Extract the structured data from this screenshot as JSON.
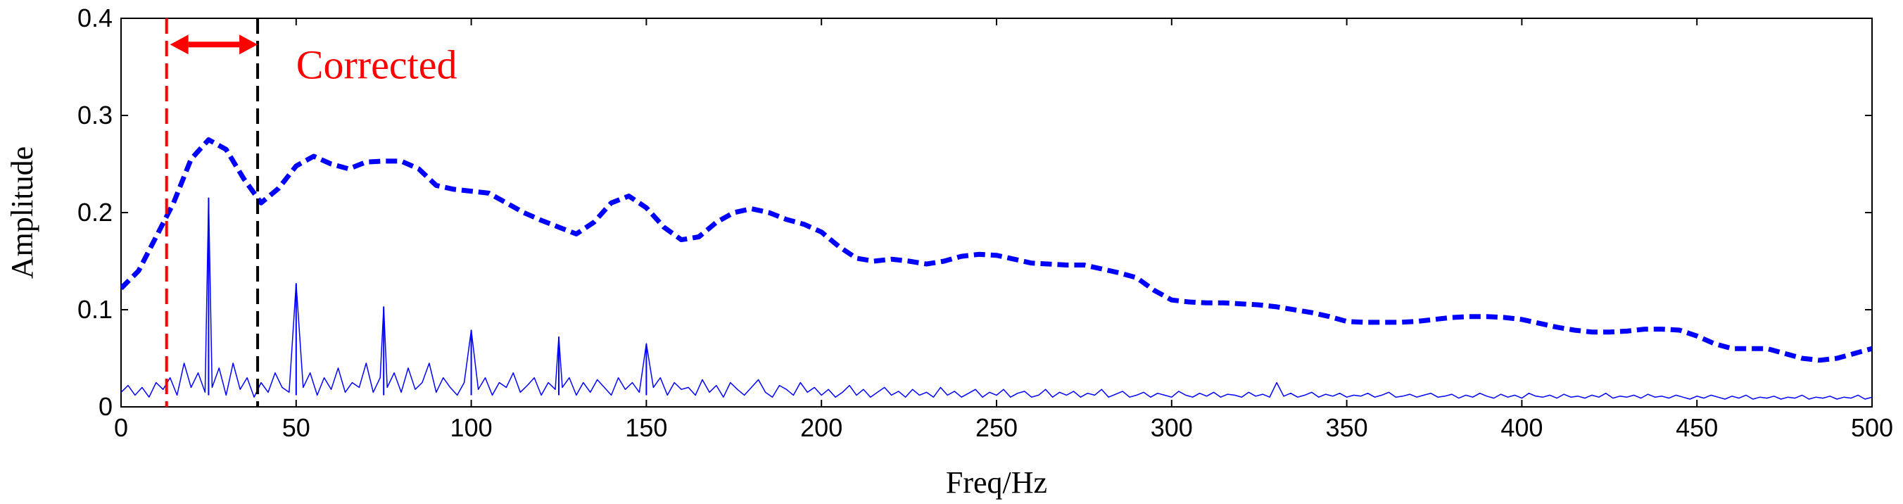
{
  "chart_data": {
    "type": "line",
    "title": "",
    "xlabel": "Freq/Hz",
    "ylabel": "Amplitude",
    "xlim": [
      0,
      500
    ],
    "ylim": [
      0,
      0.4
    ],
    "xticks": [
      0,
      50,
      100,
      150,
      200,
      250,
      300,
      350,
      400,
      450,
      500
    ],
    "yticks": [
      0,
      0.1,
      0.2,
      0.3,
      0.4
    ],
    "ytick_labels": [
      "0",
      "0.1",
      "0.2",
      "0.3",
      "0.4"
    ],
    "grid": false,
    "annotations": [
      {
        "type": "vline",
        "x": 13,
        "color": "#ff0000",
        "style": "dashed"
      },
      {
        "type": "vline",
        "x": 39,
        "color": "#000000",
        "style": "dashed"
      },
      {
        "type": "double-arrow",
        "x_from": 14,
        "x_to": 39,
        "y": 0.373,
        "color": "#ff0000"
      },
      {
        "type": "text",
        "text": "Corrected",
        "x": 50,
        "y": 0.338,
        "color": "#ff0000"
      }
    ],
    "series": [
      {
        "style": "dashed",
        "color": "#0000ff",
        "x": [
          0,
          5,
          10,
          15,
          20,
          25,
          30,
          35,
          40,
          45,
          50,
          55,
          60,
          65,
          70,
          75,
          80,
          85,
          90,
          95,
          100,
          105,
          110,
          115,
          120,
          125,
          130,
          135,
          140,
          145,
          150,
          155,
          160,
          165,
          170,
          175,
          180,
          185,
          190,
          195,
          200,
          205,
          210,
          215,
          220,
          225,
          230,
          235,
          240,
          245,
          250,
          255,
          260,
          265,
          270,
          275,
          280,
          285,
          290,
          295,
          300,
          305,
          310,
          315,
          320,
          325,
          330,
          335,
          340,
          345,
          350,
          355,
          360,
          365,
          370,
          375,
          380,
          385,
          390,
          395,
          400,
          405,
          410,
          415,
          420,
          425,
          430,
          435,
          440,
          445,
          450,
          455,
          460,
          465,
          470,
          475,
          480,
          485,
          490,
          495,
          500
        ],
        "y": [
          0.122,
          0.14,
          0.175,
          0.21,
          0.255,
          0.275,
          0.265,
          0.235,
          0.21,
          0.225,
          0.248,
          0.258,
          0.25,
          0.245,
          0.252,
          0.253,
          0.253,
          0.245,
          0.228,
          0.224,
          0.222,
          0.22,
          0.21,
          0.2,
          0.192,
          0.185,
          0.178,
          0.19,
          0.21,
          0.217,
          0.205,
          0.185,
          0.172,
          0.175,
          0.19,
          0.2,
          0.204,
          0.2,
          0.193,
          0.188,
          0.18,
          0.165,
          0.153,
          0.15,
          0.152,
          0.15,
          0.147,
          0.15,
          0.155,
          0.157,
          0.156,
          0.152,
          0.148,
          0.147,
          0.146,
          0.146,
          0.142,
          0.138,
          0.133,
          0.12,
          0.11,
          0.108,
          0.107,
          0.107,
          0.106,
          0.105,
          0.103,
          0.1,
          0.097,
          0.093,
          0.088,
          0.087,
          0.087,
          0.087,
          0.088,
          0.09,
          0.092,
          0.093,
          0.093,
          0.092,
          0.09,
          0.086,
          0.082,
          0.079,
          0.077,
          0.077,
          0.078,
          0.08,
          0.08,
          0.079,
          0.073,
          0.065,
          0.06,
          0.06,
          0.06,
          0.055,
          0.05,
          0.048,
          0.05,
          0.055,
          0.06
        ]
      },
      {
        "style": "solid",
        "color": "#0000ff",
        "peaks": [
          {
            "x": 25,
            "y": 0.215
          },
          {
            "x": 50,
            "y": 0.127
          },
          {
            "x": 75,
            "y": 0.103
          },
          {
            "x": 100,
            "y": 0.079
          },
          {
            "x": 125,
            "y": 0.072
          },
          {
            "x": 150,
            "y": 0.065
          }
        ],
        "x": [
          0,
          2,
          4,
          6,
          8,
          10,
          12,
          14,
          16,
          18,
          20,
          22,
          24,
          25,
          26,
          28,
          30,
          32,
          34,
          36,
          38,
          40,
          42,
          44,
          46,
          48,
          50,
          52,
          54,
          56,
          58,
          60,
          62,
          64,
          66,
          68,
          70,
          72,
          74,
          75,
          76,
          78,
          80,
          82,
          84,
          86,
          88,
          90,
          92,
          94,
          96,
          98,
          100,
          102,
          104,
          106,
          108,
          110,
          112,
          114,
          116,
          118,
          120,
          122,
          124,
          125,
          126,
          128,
          130,
          132,
          134,
          136,
          138,
          140,
          142,
          144,
          146,
          148,
          150,
          152,
          154,
          156,
          158,
          160,
          162,
          164,
          166,
          168,
          170,
          172,
          174,
          176,
          178,
          180,
          182,
          184,
          186,
          188,
          190,
          192,
          194,
          196,
          198,
          200,
          202,
          204,
          206,
          208,
          210,
          212,
          214,
          216,
          218,
          220,
          222,
          224,
          226,
          228,
          230,
          232,
          234,
          236,
          238,
          240,
          242,
          244,
          246,
          248,
          250,
          252,
          254,
          256,
          258,
          260,
          262,
          264,
          266,
          268,
          270,
          272,
          274,
          276,
          278,
          280,
          282,
          284,
          286,
          288,
          290,
          292,
          294,
          296,
          298,
          300,
          302,
          304,
          306,
          308,
          310,
          312,
          314,
          316,
          318,
          320,
          322,
          324,
          326,
          328,
          330,
          332,
          334,
          336,
          338,
          340,
          342,
          344,
          346,
          348,
          350,
          352,
          354,
          356,
          358,
          360,
          362,
          364,
          366,
          368,
          370,
          372,
          374,
          376,
          378,
          380,
          382,
          384,
          386,
          388,
          390,
          392,
          394,
          396,
          398,
          400,
          402,
          404,
          406,
          408,
          410,
          412,
          414,
          416,
          418,
          420,
          422,
          424,
          426,
          428,
          430,
          432,
          434,
          436,
          438,
          440,
          442,
          444,
          446,
          448,
          450,
          452,
          454,
          456,
          458,
          460,
          462,
          464,
          466,
          468,
          470,
          472,
          474,
          476,
          478,
          480,
          482,
          484,
          486,
          488,
          490,
          492,
          494,
          496,
          498,
          500
        ],
        "y": [
          0.015,
          0.022,
          0.012,
          0.02,
          0.01,
          0.025,
          0.018,
          0.03,
          0.012,
          0.045,
          0.02,
          0.035,
          0.015,
          0.215,
          0.02,
          0.04,
          0.012,
          0.045,
          0.018,
          0.03,
          0.01,
          0.025,
          0.015,
          0.035,
          0.02,
          0.015,
          0.127,
          0.02,
          0.035,
          0.012,
          0.03,
          0.018,
          0.04,
          0.015,
          0.025,
          0.02,
          0.045,
          0.015,
          0.03,
          0.103,
          0.02,
          0.035,
          0.015,
          0.04,
          0.018,
          0.025,
          0.045,
          0.015,
          0.03,
          0.02,
          0.012,
          0.025,
          0.079,
          0.018,
          0.03,
          0.012,
          0.025,
          0.02,
          0.035,
          0.015,
          0.022,
          0.03,
          0.012,
          0.025,
          0.018,
          0.072,
          0.02,
          0.03,
          0.012,
          0.025,
          0.015,
          0.028,
          0.02,
          0.012,
          0.03,
          0.018,
          0.025,
          0.015,
          0.065,
          0.02,
          0.03,
          0.012,
          0.025,
          0.018,
          0.02,
          0.012,
          0.028,
          0.015,
          0.022,
          0.01,
          0.025,
          0.018,
          0.012,
          0.02,
          0.028,
          0.015,
          0.01,
          0.022,
          0.018,
          0.012,
          0.025,
          0.015,
          0.02,
          0.012,
          0.018,
          0.01,
          0.015,
          0.022,
          0.012,
          0.018,
          0.01,
          0.015,
          0.02,
          0.012,
          0.016,
          0.01,
          0.018,
          0.012,
          0.015,
          0.01,
          0.02,
          0.012,
          0.016,
          0.01,
          0.014,
          0.018,
          0.01,
          0.015,
          0.012,
          0.018,
          0.01,
          0.014,
          0.016,
          0.01,
          0.012,
          0.018,
          0.01,
          0.015,
          0.012,
          0.016,
          0.01,
          0.014,
          0.012,
          0.018,
          0.01,
          0.013,
          0.016,
          0.01,
          0.012,
          0.015,
          0.01,
          0.014,
          0.012,
          0.01,
          0.016,
          0.012,
          0.01,
          0.014,
          0.011,
          0.015,
          0.01,
          0.013,
          0.012,
          0.01,
          0.015,
          0.011,
          0.013,
          0.01,
          0.025,
          0.011,
          0.014,
          0.01,
          0.012,
          0.015,
          0.01,
          0.013,
          0.011,
          0.014,
          0.01,
          0.012,
          0.011,
          0.014,
          0.01,
          0.012,
          0.015,
          0.01,
          0.011,
          0.013,
          0.01,
          0.012,
          0.014,
          0.01,
          0.011,
          0.013,
          0.009,
          0.012,
          0.01,
          0.014,
          0.011,
          0.009,
          0.013,
          0.01,
          0.012,
          0.009,
          0.014,
          0.011,
          0.01,
          0.012,
          0.009,
          0.013,
          0.01,
          0.011,
          0.009,
          0.012,
          0.01,
          0.014,
          0.009,
          0.011,
          0.01,
          0.012,
          0.009,
          0.013,
          0.01,
          0.011,
          0.009,
          0.012,
          0.01,
          0.008,
          0.011,
          0.009,
          0.012,
          0.01,
          0.008,
          0.011,
          0.009,
          0.012,
          0.008,
          0.01,
          0.009,
          0.011,
          0.008,
          0.01,
          0.009,
          0.012,
          0.008,
          0.01,
          0.009,
          0.011,
          0.008,
          0.01,
          0.009,
          0.012,
          0.008,
          0.01
        ]
      }
    ]
  }
}
